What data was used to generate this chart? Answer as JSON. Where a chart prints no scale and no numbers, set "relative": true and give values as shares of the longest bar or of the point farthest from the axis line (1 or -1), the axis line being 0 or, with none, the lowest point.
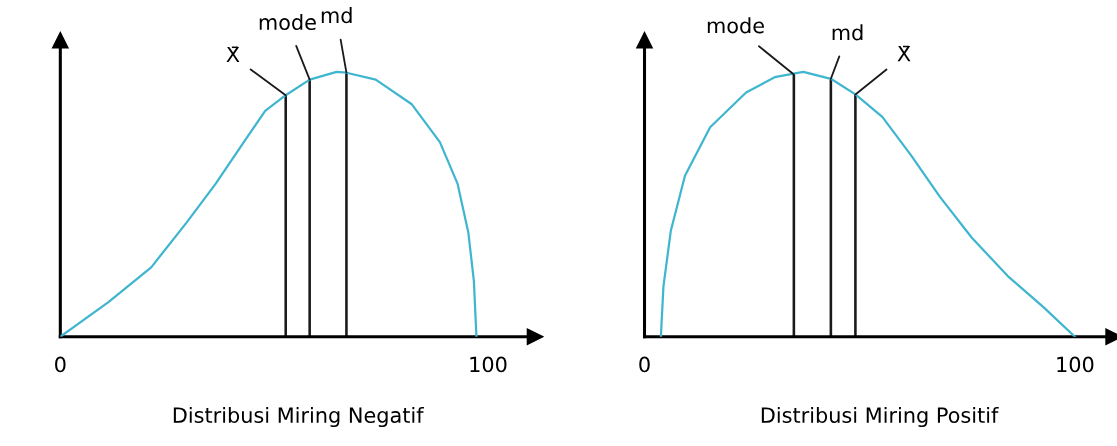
{
  "chart_data": [
    {
      "type": "line",
      "relative": true,
      "xlabel": "Distribusi Miring Negatif",
      "xlim": [
        0,
        111
      ],
      "xticks": [
        0,
        100
      ],
      "grid": false,
      "legend": false,
      "marker": "none",
      "line_style": "solid",
      "series": [
        {
          "color": "#3fb5cf",
          "x": [
            0,
            11.25,
            21.25,
            29.6,
            36.3,
            42.9,
            47.9,
            52.7,
            58.3,
            64.6,
            66.9,
            73.75,
            82.1,
            88.75,
            92.9,
            95.4,
            96.7,
            97.3
          ],
          "values": [
            0,
            0.131,
            0.262,
            0.433,
            0.577,
            0.735,
            0.853,
            0.912,
            0.971,
            1,
            0.997,
            0.971,
            0.879,
            0.735,
            0.577,
            0.394,
            0.21,
            0
          ]
        },
        {
          "type": "bar",
          "color": "#1a1a1a",
          "x": [
            52.7,
            58.3,
            66.9
          ],
          "values": [
            0.912,
            0.971,
            0.997
          ]
        }
      ],
      "annotations": [
        {
          "text": "X̄",
          "x": 52.7,
          "y": 0.912
        },
        {
          "text": "mode",
          "x": 58.3,
          "y": 0.971
        },
        {
          "text": "md",
          "x": 66.9,
          "y": 0.997
        }
      ]
    },
    {
      "type": "line",
      "relative": true,
      "xlabel": "Distribusi Miring Positif",
      "xlim": [
        0,
        109
      ],
      "xticks": [
        0,
        100
      ],
      "grid": false,
      "legend": false,
      "marker": "none",
      "line_style": "solid",
      "series": [
        {
          "color": "#3fb5cf",
          "x": [
            3.8,
            4.4,
            6.1,
            9.4,
            15.25,
            23.6,
            30.25,
            36.9,
            43.3,
            49,
            55.25,
            61.9,
            68.6,
            76.1,
            84.4,
            92.75,
            100
          ],
          "values": [
            0,
            0.19,
            0.399,
            0.608,
            0.791,
            0.922,
            0.98,
            1,
            0.974,
            0.915,
            0.83,
            0.686,
            0.529,
            0.373,
            0.229,
            0.111,
            0
          ]
        },
        {
          "type": "bar",
          "color": "#1a1a1a",
          "x": [
            34.7,
            43.3,
            49
          ],
          "values": [
            0.99,
            0.974,
            0.915
          ]
        }
      ],
      "annotations": [
        {
          "text": "mode",
          "x": 34.7,
          "y": 0.99
        },
        {
          "text": "md",
          "x": 43.3,
          "y": 0.974
        },
        {
          "text": "X̄",
          "x": 49,
          "y": 0.915
        }
      ]
    }
  ]
}
